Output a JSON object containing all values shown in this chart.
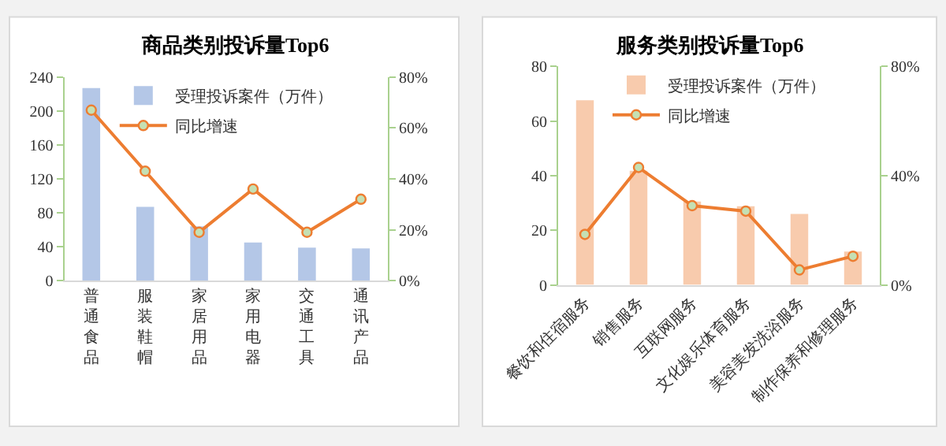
{
  "chart_data": [
    {
      "type": "bar",
      "title": "商品类别投诉量Top6",
      "categories": [
        "普通食品",
        "服装鞋帽",
        "家居用品",
        "家用电器",
        "交通工具",
        "通讯产品"
      ],
      "series": [
        {
          "name": "受理投诉案件（万件）",
          "color": "#b4c7e7",
          "values": [
            227,
            87,
            64,
            45,
            39,
            38
          ]
        },
        {
          "name": "同比增速",
          "type": "line",
          "axis": "y2",
          "color": "#ed7d31",
          "values": [
            0.67,
            0.43,
            0.19,
            0.36,
            0.19,
            0.32
          ]
        }
      ],
      "ylim": [
        0,
        240
      ],
      "yticks": [
        0,
        40,
        80,
        120,
        160,
        200,
        240
      ],
      "y2lim": [
        0,
        0.8
      ],
      "y2ticks": [
        {
          "value": 0,
          "label": "0%"
        },
        {
          "value": 0.2,
          "label": "20%"
        },
        {
          "value": 0.4,
          "label": "40%"
        },
        {
          "value": 0.6,
          "label": "60%"
        },
        {
          "value": 0.8,
          "label": "80%"
        }
      ],
      "marker": "circle",
      "grid": false,
      "legend": "top"
    },
    {
      "type": "bar",
      "title": "服务类别投诉量Top6",
      "categories": [
        "餐饮和住宿服务",
        "销售服务",
        "互联网服务",
        "文化娱乐体育服务",
        "美容美发洗浴服务",
        "制作保养和修理服务"
      ],
      "series": [
        {
          "name": "受理投诉案件（万件）",
          "color": "#f8cbad",
          "values": [
            67.6,
            41.8,
            30.5,
            28.8,
            26,
            12.2
          ]
        },
        {
          "name": "同比增速",
          "type": "line",
          "axis": "y2",
          "color": "#ed7d31",
          "values": [
            0.185,
            0.43,
            0.29,
            0.27,
            0.055,
            0.105
          ]
        }
      ],
      "ylim": [
        0,
        80
      ],
      "yticks": [
        0,
        20,
        40,
        60,
        80
      ],
      "y2lim": [
        0,
        0.8
      ],
      "y2ticks": [
        {
          "value": 0,
          "label": "0%"
        },
        {
          "value": 0.4,
          "label": "40%"
        },
        {
          "value": 0.8,
          "label": "80%"
        }
      ],
      "marker": "circle",
      "grid": false,
      "legend": "top"
    }
  ]
}
